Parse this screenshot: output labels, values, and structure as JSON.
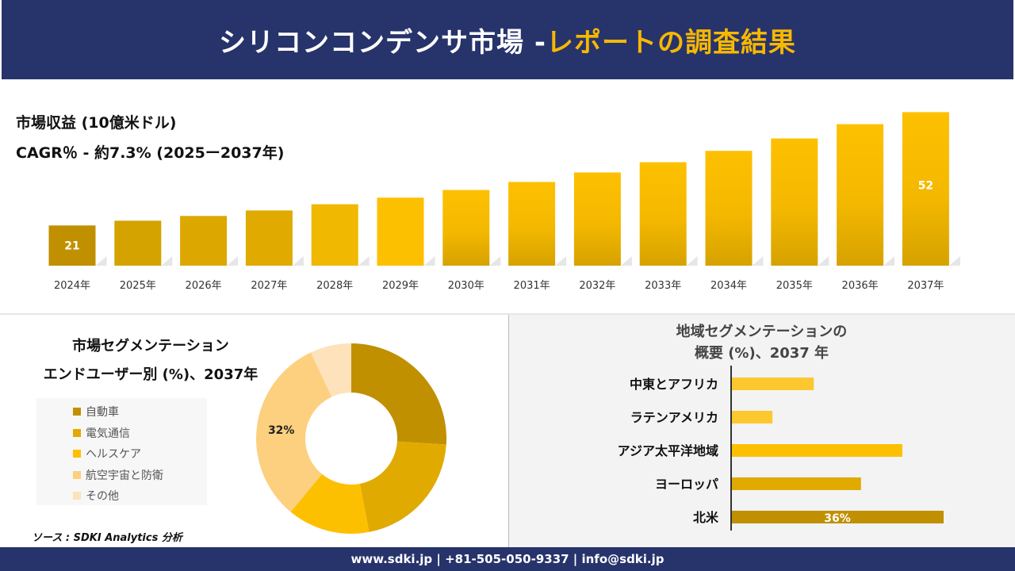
{
  "header": {
    "title_main": "シリコンコンデンサ市場 -",
    "title_accent": "レポートの調査結果"
  },
  "revenue_label": "市場収益 (10億米ドル)",
  "cagr_label": "CAGR％ - 約7.3% (2025ー2037年)",
  "segment": {
    "title1": "市場セグメンテーション",
    "title2": "エンドユーザー別 (%)、2037年"
  },
  "region": {
    "title1": "地域セグメンテーションの",
    "title2": "概要 (%)、2037 年"
  },
  "source": "ソース : SDKI Analytics 分析",
  "footer": "www.sdki.jp | +81-505-050-9337 | info@sdki.jp",
  "colors": {
    "navy": "#27336b",
    "accent": "#f7b800"
  },
  "chart_data": [
    {
      "type": "bar",
      "categories": [
        "2024年",
        "2025年",
        "2026年",
        "2027年",
        "2028年",
        "2029年",
        "2030年",
        "2031年",
        "2032年",
        "2033年",
        "2034年",
        "2035年",
        "2036年",
        "2037年"
      ],
      "values": [
        21,
        22.3,
        23.6,
        25.1,
        26.8,
        28.6,
        30.7,
        32.9,
        35.5,
        38.3,
        41.4,
        44.8,
        48.7,
        52
      ],
      "data_labels": {
        "0": "21",
        "13": "52"
      },
      "ylim": [
        10,
        55
      ],
      "grid": false,
      "colors": [
        "#c09000",
        "#d4a300",
        "#dca800",
        "#e0aa00",
        "#f0b800",
        "#fdc000",
        "#fdc000",
        "#fdc000",
        "#fdc000",
        "#fdc000",
        "#fdc000",
        "#fdc000",
        "#fdc000",
        "#fdc000"
      ]
    },
    {
      "type": "pie",
      "donut": true,
      "categories": [
        "自動車",
        "電気通信",
        "ヘルスケア",
        "航空宇宙と防衛",
        "その他"
      ],
      "values": [
        26,
        21,
        14,
        32,
        7
      ],
      "data_labels": {
        "3": "32%"
      },
      "colors": [
        "#c09000",
        "#e0aa00",
        "#fdc000",
        "#fdd07f",
        "#fde2bb"
      ],
      "legend": "left"
    },
    {
      "type": "bar",
      "orientation": "horizontal",
      "categories": [
        "中東とアフリカ",
        "ラテンアメリカ",
        "アジア太平洋地域",
        "ヨーロッパ",
        "北米"
      ],
      "values": [
        14,
        7,
        29,
        22,
        36
      ],
      "data_labels": {
        "4": "36%"
      },
      "colors": [
        "#fdc82f",
        "#fdc82f",
        "#fdc000",
        "#e0aa00",
        "#c09000"
      ]
    }
  ]
}
